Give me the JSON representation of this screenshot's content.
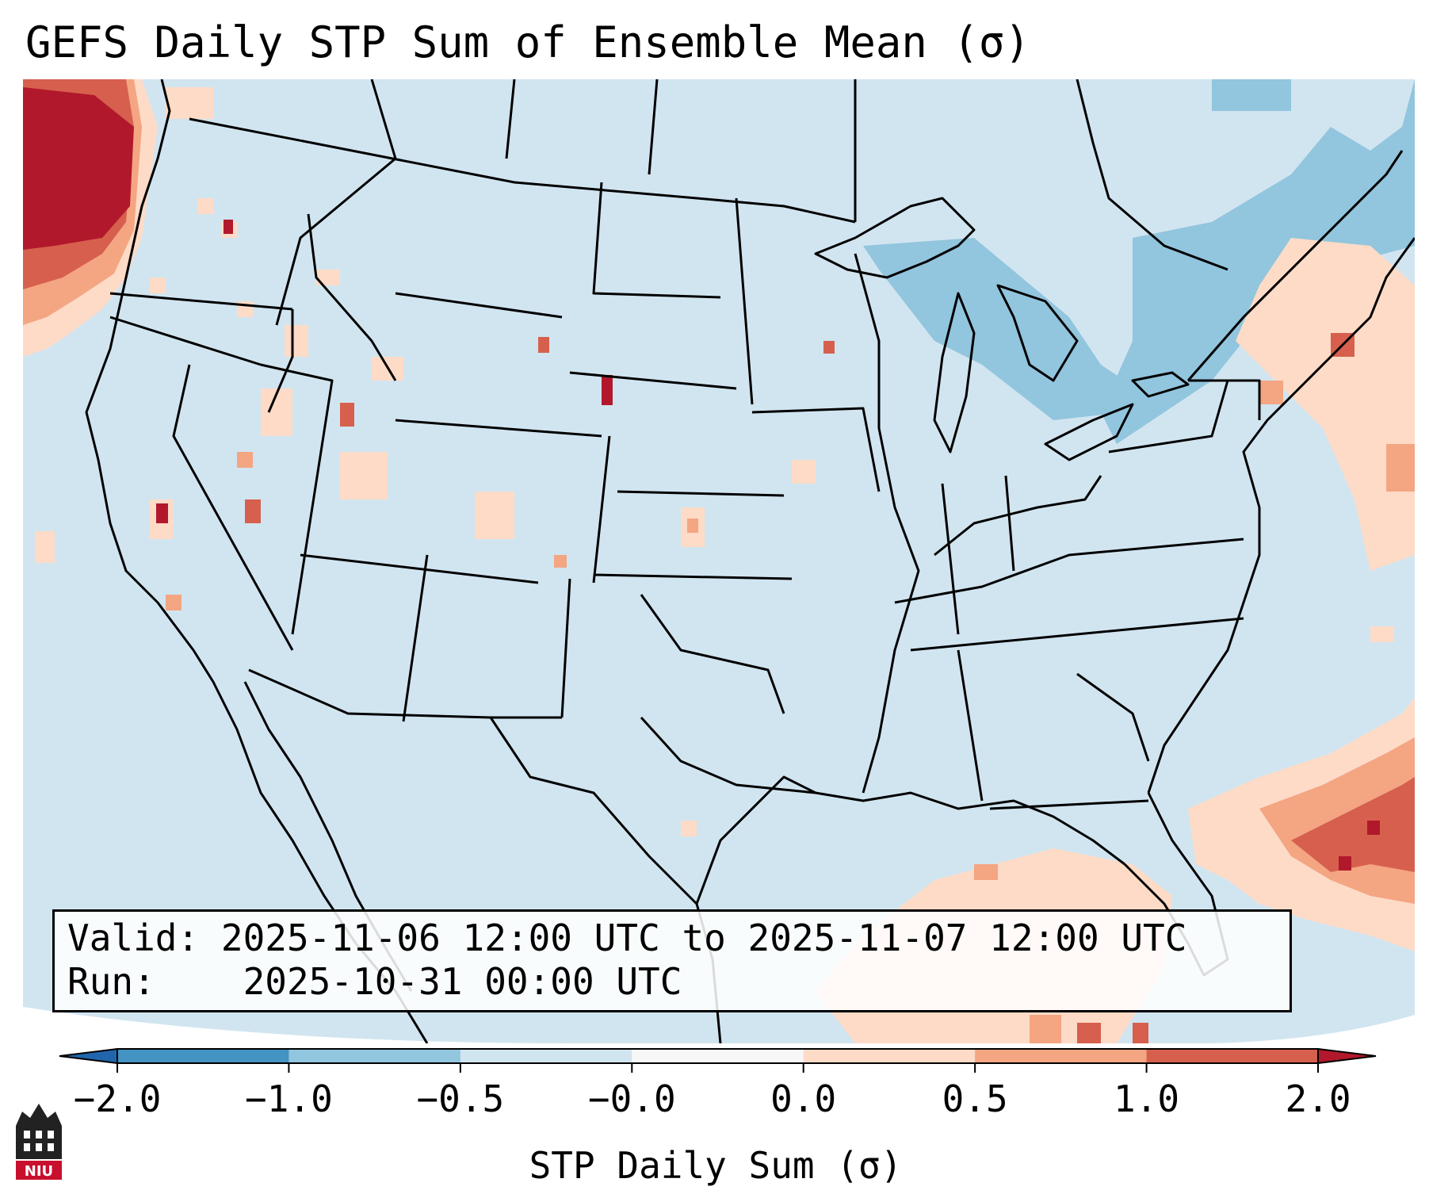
{
  "title": "GEFS Daily STP Sum of Ensemble Mean (σ)",
  "info": {
    "valid_label": "Valid:",
    "valid_value": "2025-11-06 12:00 UTC to 2025-11-07 12:00 UTC",
    "run_label": "Run:",
    "run_value": "2025-10-31 00:00 UTC"
  },
  "colorbar": {
    "label": "STP Daily Sum (σ)",
    "ticks": [
      "−2.0",
      "−1.0",
      "−0.5",
      "−0.0",
      "0.0",
      "0.5",
      "1.0",
      "2.0"
    ],
    "bins": [
      {
        "range": "-2.0 to -1.0",
        "color": "#4393c3"
      },
      {
        "range": "-1.0 to -0.5",
        "color": "#92c5de"
      },
      {
        "range": "-0.5 to -0.0",
        "color": "#d1e5f0"
      },
      {
        "range": "-0.0 to 0.0",
        "color": "#f7f7f7"
      },
      {
        "range": "0.0 to 0.5",
        "color": "#fddbc7"
      },
      {
        "range": "0.5 to 1.0",
        "color": "#f4a582"
      },
      {
        "range": "1.0 to 2.0",
        "color": "#d6604d"
      }
    ],
    "under_color": "#2166ac",
    "over_color": "#b2182b"
  },
  "map": {
    "background_color": "#d1e5f0",
    "outside_domain_color": "#ffffff",
    "regions": [
      {
        "name": "pacific-northwest-offshore",
        "level": "over"
      },
      {
        "name": "northeast-canada",
        "level": "-1.0 to -0.5"
      },
      {
        "name": "great-lakes",
        "level": "-1.0 to -0.5"
      },
      {
        "name": "new-england-coast",
        "level": "0.0 to 0.5"
      },
      {
        "name": "bahamas-atlantic",
        "level": "1.0 to 2.0"
      },
      {
        "name": "gulf-of-mexico-south",
        "level": "0.0 to 0.5"
      }
    ]
  },
  "logo": {
    "text": "NIU",
    "color": "#c8102e"
  }
}
